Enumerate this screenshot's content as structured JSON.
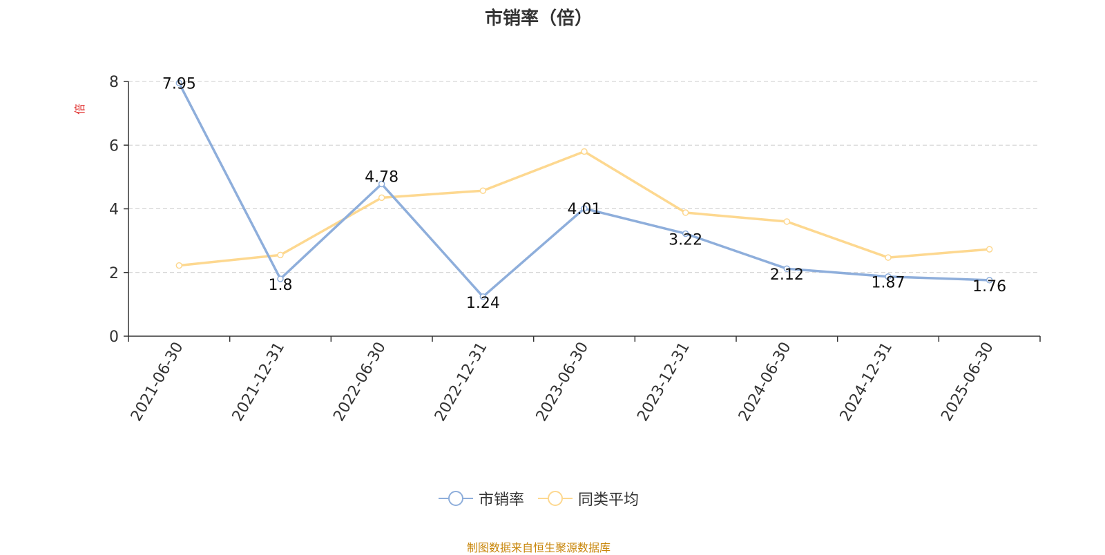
{
  "chart_data": {
    "type": "line",
    "title": "市销率（倍）",
    "ylabel": "倍",
    "xlabel": "",
    "categories": [
      "2021-06-30",
      "2021-12-31",
      "2022-06-30",
      "2022-12-31",
      "2023-06-30",
      "2023-12-31",
      "2024-06-30",
      "2024-12-31",
      "2025-06-30"
    ],
    "ylim": [
      0,
      8
    ],
    "yticks": [
      0,
      2,
      4,
      6,
      8
    ],
    "grid": true,
    "legend_position": "bottom",
    "series": [
      {
        "name": "市销率",
        "color": "#8eaedb",
        "show_labels": true,
        "values": [
          7.95,
          1.8,
          4.78,
          1.24,
          4.01,
          3.22,
          2.12,
          1.87,
          1.76
        ],
        "labels": [
          "7.95",
          "1.8",
          "4.78",
          "1.24",
          "4.01",
          "3.22",
          "2.12",
          "1.87",
          "1.76"
        ]
      },
      {
        "name": "同类平均",
        "color": "#fdd890",
        "show_labels": false,
        "values": [
          2.22,
          2.55,
          4.35,
          4.57,
          5.8,
          3.88,
          3.6,
          2.47,
          2.73
        ]
      }
    ]
  },
  "footer": "制图数据来自恒生聚源数据库"
}
